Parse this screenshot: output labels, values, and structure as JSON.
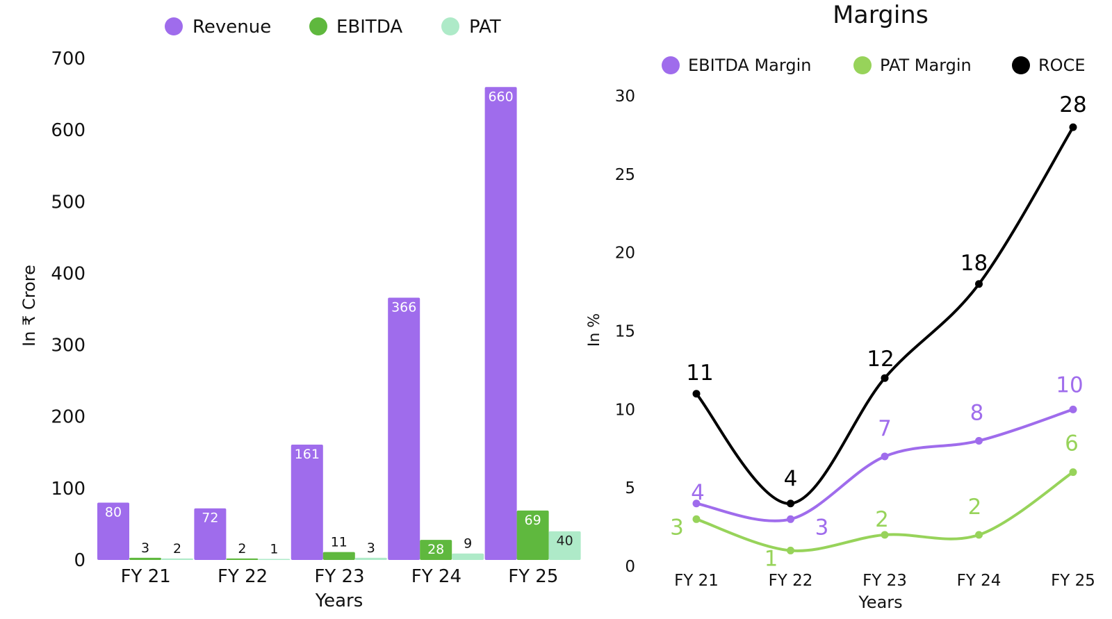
{
  "colors": {
    "revenue": "#9f6cec",
    "ebitda": "#5fb83e",
    "pat": "#aeeac8",
    "ebitda_margin": "#9f6cec",
    "pat_margin": "#97d35a",
    "roce": "#000000",
    "axis_text": "#111111"
  },
  "chart_data": [
    {
      "type": "bar",
      "title": "",
      "xlabel": "Years",
      "ylabel": "In ₹ Crore",
      "ylim": [
        0,
        700
      ],
      "yticks": [
        "0",
        "100",
        "200",
        "300",
        "400",
        "500",
        "600",
        "700"
      ],
      "legend_position": "top",
      "categories": [
        "FY 21",
        "FY 22",
        "FY 23",
        "FY 24",
        "FY 25"
      ],
      "series": [
        {
          "name": "Revenue",
          "values": [
            80,
            72,
            161,
            366,
            660
          ],
          "labels": [
            "80",
            "72",
            "161",
            "366",
            "660"
          ]
        },
        {
          "name": "EBITDA",
          "values": [
            3,
            2,
            11,
            28,
            69
          ],
          "labels": [
            "3",
            "2",
            "11",
            "28",
            "69"
          ]
        },
        {
          "name": "PAT",
          "values": [
            2,
            1,
            3,
            9,
            40
          ],
          "labels": [
            "2",
            "1",
            "3",
            "9",
            "40"
          ]
        }
      ]
    },
    {
      "type": "line",
      "title": "Margins",
      "xlabel": "Years",
      "ylabel": "In %",
      "ylim": [
        0,
        30
      ],
      "yticks": [
        "0",
        "5",
        "10",
        "15",
        "20",
        "25",
        "30"
      ],
      "legend_position": "top",
      "categories": [
        "FY 21",
        "FY 22",
        "FY 23",
        "FY 24",
        "FY 25"
      ],
      "series": [
        {
          "name": "EBITDA Margin",
          "values": [
            4,
            3,
            7,
            8,
            10
          ],
          "labels": [
            "4",
            "3",
            "7",
            "8",
            "10"
          ]
        },
        {
          "name": "PAT Margin",
          "values": [
            3,
            1,
            2,
            2,
            6
          ],
          "labels": [
            "3",
            "1",
            "2",
            "2",
            "6"
          ]
        },
        {
          "name": "ROCE",
          "values": [
            11,
            4,
            12,
            18,
            28
          ],
          "labels": [
            "11",
            "4",
            "12",
            "18",
            "28"
          ]
        }
      ]
    }
  ]
}
